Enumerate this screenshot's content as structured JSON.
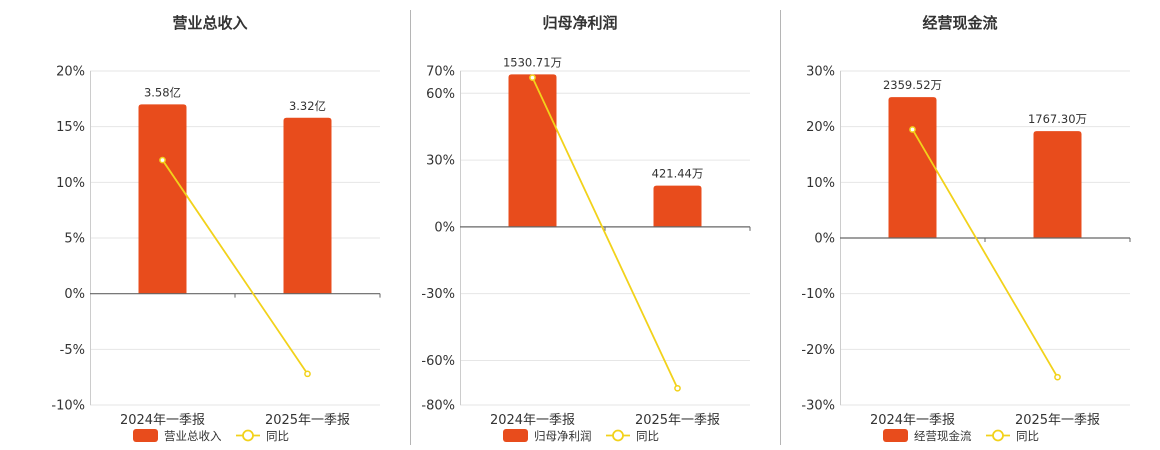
{
  "colors": {
    "bar": "#e84c1c",
    "line": "#f2d21b",
    "grid": "#e6e6e6",
    "axis": "#666666",
    "divider": "#b5b5b5"
  },
  "chart_data": [
    {
      "type": "bar",
      "title": "营业总收入",
      "categories": [
        "2024年一季报",
        "2025年一季报"
      ],
      "series": [
        {
          "name": "营业总收入",
          "type": "bar",
          "values": [
            17.0,
            15.8
          ],
          "labels": [
            "3.58亿",
            "3.32亿"
          ]
        },
        {
          "name": "同比",
          "type": "line",
          "values": [
            12.0,
            -7.2
          ]
        }
      ],
      "ylim": [
        -10,
        20
      ],
      "yticks": [
        20,
        15,
        10,
        5,
        0,
        -5,
        -10
      ],
      "ytick_labels": [
        "20%",
        "15%",
        "10%",
        "5%",
        "0%",
        "-5%",
        "-10%"
      ],
      "grid": true,
      "legend": "bottom"
    },
    {
      "type": "bar",
      "title": "归母净利润",
      "categories": [
        "2024年一季报",
        "2025年一季报"
      ],
      "series": [
        {
          "name": "归母净利润",
          "type": "bar",
          "values": [
            68.5,
            18.5
          ],
          "labels": [
            "1530.71万",
            "421.44万"
          ]
        },
        {
          "name": "同比",
          "type": "line",
          "values": [
            67.0,
            -72.5
          ]
        }
      ],
      "ylim": [
        -80,
        70
      ],
      "yticks": [
        70,
        60,
        30,
        0,
        -30,
        -60,
        -80
      ],
      "ytick_labels": [
        "70%",
        "60%",
        "30%",
        "0%",
        "-30%",
        "-60%",
        "-80%"
      ],
      "grid": true,
      "legend": "bottom"
    },
    {
      "type": "bar",
      "title": "经营现金流",
      "categories": [
        "2024年一季报",
        "2025年一季报"
      ],
      "series": [
        {
          "name": "经营现金流",
          "type": "bar",
          "values": [
            25.3,
            19.2
          ],
          "labels": [
            "2359.52万",
            "1767.30万"
          ]
        },
        {
          "name": "同比",
          "type": "line",
          "values": [
            19.5,
            -25.0
          ]
        }
      ],
      "ylim": [
        -30,
        30
      ],
      "yticks": [
        30,
        20,
        10,
        0,
        -10,
        -20,
        -30
      ],
      "ytick_labels": [
        "30%",
        "20%",
        "10%",
        "0%",
        "-10%",
        "-20%",
        "-30%"
      ],
      "grid": true,
      "legend": "bottom"
    }
  ]
}
